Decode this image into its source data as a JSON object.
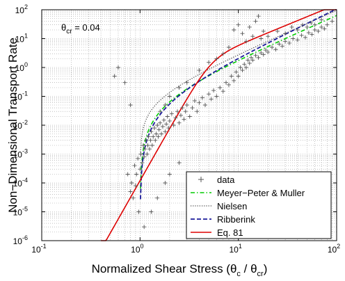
{
  "chart_data": {
    "type": "scatter",
    "xlabel_main": "Normalized Shear Stress (θ",
    "xlabel_sub1": "c",
    "xlabel_mid": " / θ",
    "xlabel_sub2": "cr",
    "xlabel_end": ")",
    "ylabel": "Non−Dimensional Transport Rate",
    "annotation_main": "θ",
    "annotation_sub": "cr",
    "annotation_rest": " = 0.04",
    "x_scale": "log",
    "y_scale": "log",
    "xlim": [
      0.1,
      100
    ],
    "ylim": [
      1e-06,
      100
    ],
    "x_ticks": [
      {
        "base": "10",
        "exp": "-1"
      },
      {
        "base": "10",
        "exp": "0"
      },
      {
        "base": "10",
        "exp": "1"
      },
      {
        "base": "10",
        "exp": "2"
      }
    ],
    "y_ticks": [
      {
        "base": "10",
        "exp": "-6"
      },
      {
        "base": "10",
        "exp": "-5"
      },
      {
        "base": "10",
        "exp": "-4"
      },
      {
        "base": "10",
        "exp": "-3"
      },
      {
        "base": "10",
        "exp": "-2"
      },
      {
        "base": "10",
        "exp": "-1"
      },
      {
        "base": "10",
        "exp": "0"
      },
      {
        "base": "10",
        "exp": "1"
      },
      {
        "base": "10",
        "exp": "2"
      }
    ],
    "grid": true,
    "legend_position": "bottom-right",
    "series": [
      {
        "name": "data",
        "marker": "+",
        "color": "#555555",
        "points": [
          [
            0.75,
            0.0002
          ],
          [
            0.8,
            5e-05
          ],
          [
            0.82,
            0.0001
          ],
          [
            0.85,
            3e-05
          ],
          [
            0.88,
            0.0004
          ],
          [
            0.9,
            8e-05
          ],
          [
            0.92,
            0.0002
          ],
          [
            0.95,
            0.0007
          ],
          [
            0.97,
            1e-05
          ],
          [
            1.0,
            0.0003
          ],
          [
            1.02,
            0.001
          ],
          [
            1.05,
            0.0005
          ],
          [
            1.08,
            0.002
          ],
          [
            1.1,
            0.0008
          ],
          [
            1.12,
            0.0015
          ],
          [
            1.15,
            0.003
          ],
          [
            1.18,
            0.001
          ],
          [
            1.2,
            0.002
          ],
          [
            1.22,
            0.004
          ],
          [
            1.25,
            0.0015
          ],
          [
            1.28,
            0.003
          ],
          [
            1.3,
            0.006
          ],
          [
            1.33,
            0.002
          ],
          [
            1.36,
            0.004
          ],
          [
            1.4,
            0.008
          ],
          [
            1.43,
            0.003
          ],
          [
            1.46,
            0.005
          ],
          [
            1.5,
            0.01
          ],
          [
            1.53,
            0.004
          ],
          [
            1.56,
            0.007
          ],
          [
            1.6,
            0.012
          ],
          [
            1.65,
            0.005
          ],
          [
            1.7,
            0.009
          ],
          [
            1.75,
            0.015
          ],
          [
            1.8,
            0.006
          ],
          [
            1.85,
            0.011
          ],
          [
            1.9,
            0.02
          ],
          [
            1.95,
            0.008
          ],
          [
            2.0,
            0.014
          ],
          [
            2.1,
            0.025
          ],
          [
            2.2,
            0.01
          ],
          [
            2.3,
            0.018
          ],
          [
            2.4,
            0.03
          ],
          [
            2.5,
            0.012
          ],
          [
            2.6,
            0.022
          ],
          [
            2.7,
            0.04
          ],
          [
            2.8,
            0.016
          ],
          [
            2.9,
            0.03
          ],
          [
            3.0,
            0.05
          ],
          [
            3.2,
            0.02
          ],
          [
            3.4,
            0.04
          ],
          [
            3.6,
            0.07
          ],
          [
            3.8,
            0.03
          ],
          [
            4.0,
            0.06
          ],
          [
            4.3,
            0.09
          ],
          [
            4.6,
            0.05
          ],
          [
            5.0,
            0.12
          ],
          [
            5.3,
            0.08
          ],
          [
            5.6,
            0.16
          ],
          [
            6.0,
            0.1
          ],
          [
            6.5,
            0.2
          ],
          [
            7.0,
            0.15
          ],
          [
            7.5,
            0.3
          ],
          [
            8.0,
            0.25
          ],
          [
            8.5,
            0.5
          ],
          [
            9.0,
            0.35
          ],
          [
            9.5,
            0.7
          ],
          [
            10.0,
            0.5
          ],
          [
            10.5,
            1.0
          ],
          [
            11.0,
            0.8
          ],
          [
            11.5,
            1.3
          ],
          [
            12.0,
            1.0
          ],
          [
            12.5,
            1.8
          ],
          [
            13.0,
            1.4
          ],
          [
            13.5,
            2.2
          ],
          [
            14.0,
            1.8
          ],
          [
            15.0,
            2.6
          ],
          [
            16.0,
            2.2
          ],
          [
            17.0,
            3.2
          ],
          [
            18.0,
            2.8
          ],
          [
            19.0,
            4.0
          ],
          [
            20.0,
            3.4
          ],
          [
            22.0,
            5.0
          ],
          [
            24.0,
            4.2
          ],
          [
            26.0,
            6.5
          ],
          [
            28.0,
            5.5
          ],
          [
            30.0,
            8.0
          ],
          [
            33.0,
            7.0
          ],
          [
            36.0,
            10.0
          ],
          [
            40.0,
            9.0
          ],
          [
            44.0,
            13.0
          ],
          [
            48.0,
            11.0
          ],
          [
            52.0,
            16.0
          ],
          [
            56.0,
            14.0
          ],
          [
            60.0,
            20.0
          ],
          [
            65.0,
            18.0
          ],
          [
            70.0,
            25.0
          ],
          [
            75.0,
            22.0
          ],
          [
            80.0,
            30.0
          ],
          [
            90.0,
            40.0
          ],
          [
            0.55,
            0.5
          ],
          [
            0.6,
            1.0
          ],
          [
            0.7,
            0.3
          ],
          [
            0.8,
            0.05
          ],
          [
            1.1,
            3e-06
          ],
          [
            1.3,
            1e-05
          ],
          [
            1.5,
            3e-05
          ],
          [
            1.8,
            0.0001
          ],
          [
            2.0,
            0.0002
          ],
          [
            2.5,
            0.0005
          ],
          [
            9.0,
            20.0
          ],
          [
            10.0,
            30.0
          ],
          [
            11.0,
            15.0
          ],
          [
            12.0,
            8.0
          ],
          [
            13.0,
            25.0
          ],
          [
            14.0,
            12.0
          ],
          [
            15.0,
            40.0
          ],
          [
            16.0,
            60.0
          ],
          [
            17.0,
            10.0
          ],
          [
            18.0,
            18.0
          ],
          [
            8.0,
            5.0
          ],
          [
            7.0,
            3.0
          ],
          [
            6.0,
            2.0
          ],
          [
            5.0,
            1.5
          ],
          [
            4.0,
            0.8
          ],
          [
            3.0,
            0.3
          ],
          [
            2.5,
            0.2
          ],
          [
            2.0,
            0.1
          ],
          [
            1.8,
            0.05
          ],
          [
            1.6,
            0.03
          ],
          [
            20.0,
            12.0
          ],
          [
            25.0,
            18.0
          ],
          [
            30.0,
            15.0
          ],
          [
            35.0,
            25.0
          ],
          [
            40.0,
            20.0
          ],
          [
            45.0,
            30.0
          ],
          [
            50.0,
            25.0
          ],
          [
            55.0,
            35.0
          ],
          [
            60.0,
            30.0
          ],
          [
            70.0,
            45.0
          ]
        ]
      },
      {
        "name": "Meyer−Peter & Muller",
        "style": "dash-dot",
        "color": "#00cc00"
      },
      {
        "name": "Nielsen",
        "style": "dotted",
        "color": "#444444"
      },
      {
        "name": "Ribberink",
        "style": "dashed",
        "color": "#1a1a99"
      },
      {
        "name": "Eq. 81",
        "style": "solid",
        "color": "#dd0000"
      }
    ]
  }
}
